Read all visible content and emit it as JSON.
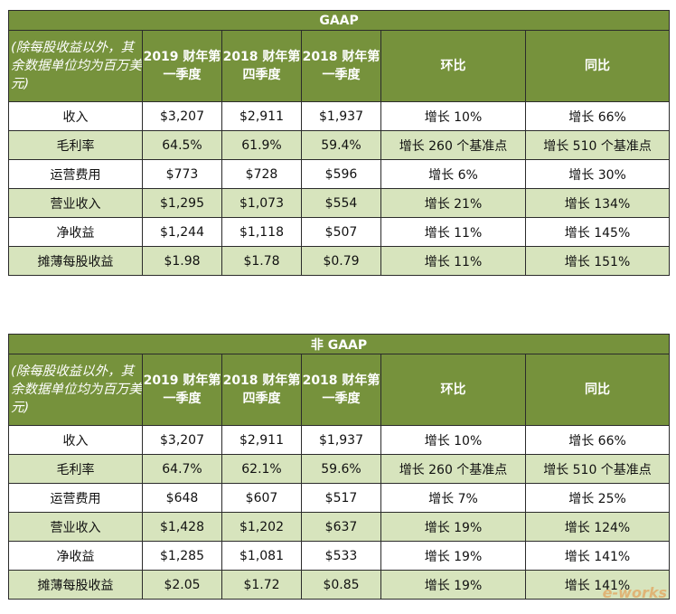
{
  "columns": [
    "(除每股收益以外，其余数据单位均为百万美元)",
    "2019 财年第一季度",
    "2018 财年第四季度",
    "2018 财年第一季度",
    "环比",
    "同比"
  ],
  "gaap": {
    "title": "GAAP",
    "rows": [
      [
        "收入",
        "$3,207",
        "$2,911",
        "$1,937",
        "增长 10%",
        "增长 66%"
      ],
      [
        "毛利率",
        "64.5%",
        "61.9%",
        "59.4%",
        "增长 260 个基准点",
        "增长 510 个基准点"
      ],
      [
        "运营费用",
        "$773",
        "$728",
        "$596",
        "增长 6%",
        "增长 30%"
      ],
      [
        "营业收入",
        "$1,295",
        "$1,073",
        "$554",
        "增长 21%",
        "增长 134%"
      ],
      [
        "净收益",
        "$1,244",
        "$1,118",
        "$507",
        "增长 11%",
        "增长 145%"
      ],
      [
        "摊薄每股收益",
        "$1.98",
        "$1.78",
        "$0.79",
        "增长 11%",
        "增长 151%"
      ]
    ]
  },
  "non_gaap": {
    "title": "非 GAAP",
    "rows": [
      [
        "收入",
        "$3,207",
        "$2,911",
        "$1,937",
        "增长 10%",
        "增长 66%"
      ],
      [
        "毛利率",
        "64.7%",
        "62.1%",
        "59.6%",
        "增长 260 个基准点",
        "增长 510 个基准点"
      ],
      [
        "运营费用",
        "$648",
        "$607",
        "$517",
        "增长 7%",
        "增长 25%"
      ],
      [
        "营业收入",
        "$1,428",
        "$1,202",
        "$637",
        "增长 19%",
        "增长 124%"
      ],
      [
        "净收益",
        "$1,285",
        "$1,081",
        "$533",
        "增长 19%",
        "增长 141%"
      ],
      [
        "摊薄每股收益",
        "$2.05",
        "$1.72",
        "$0.85",
        "增长 19%",
        "增长 141%"
      ]
    ]
  },
  "watermark": "e-works",
  "colors": {
    "header_green": "#76923c",
    "row_alt": "#d7e4bd"
  }
}
